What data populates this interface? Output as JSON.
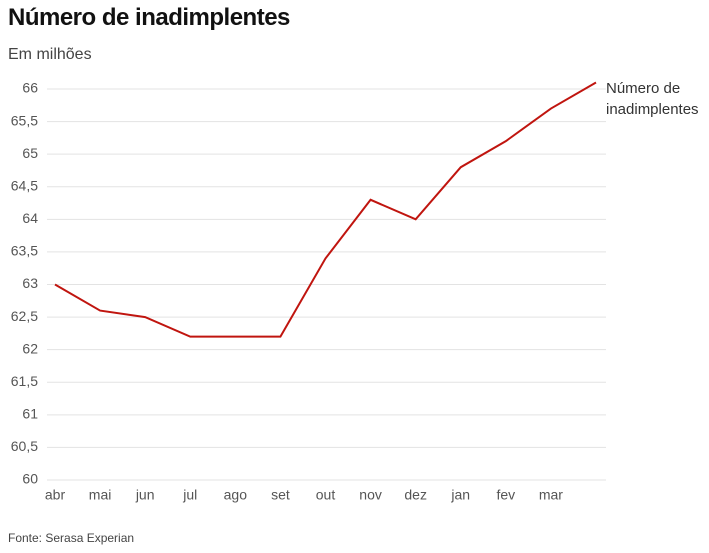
{
  "chart_data": {
    "type": "line",
    "title": "Número de inadimplentes",
    "subtitle": "Em milhões",
    "source": "Fonte: Serasa Experian",
    "categories": [
      "abr",
      "mai",
      "jun",
      "jul",
      "ago",
      "set",
      "out",
      "nov",
      "dez",
      "jan",
      "fev",
      "mar",
      null
    ],
    "series": [
      {
        "name": "Número de inadimplentes",
        "color": "#c0150f",
        "values": [
          63,
          62.6,
          62.5,
          62.2,
          62.2,
          62.2,
          63.4,
          64.3,
          64.0,
          64.8,
          65.2,
          65.7,
          66.1
        ]
      }
    ],
    "ylim": [
      60,
      66
    ],
    "yticks": [
      60,
      {
        "value": 60.5,
        "label": "60,5"
      },
      61,
      {
        "value": 61.5,
        "label": "61,5"
      },
      62,
      {
        "value": 62.5,
        "label": "62,5"
      },
      63,
      {
        "value": 63.5,
        "label": "63,5"
      },
      64,
      {
        "value": 64.5,
        "label": "64,5"
      },
      65,
      {
        "value": 65.5,
        "label": "65,5"
      },
      66
    ],
    "grid": true
  }
}
